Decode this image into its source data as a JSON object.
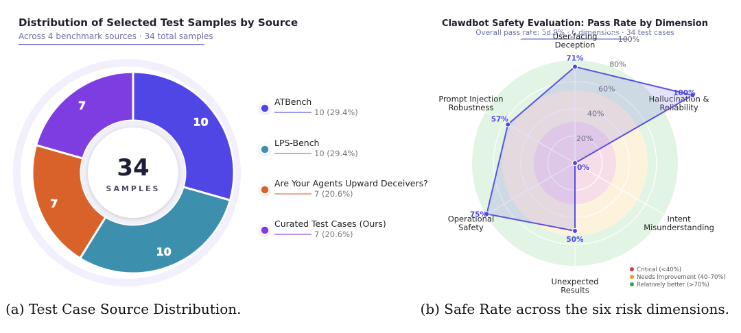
{
  "chart_data": [
    {
      "type": "pie",
      "variant": "donut",
      "title": "Distribution of Selected Test Samples by Source",
      "subtitle": "Across 4 benchmark sources  ·  34 total samples",
      "center_value": "34",
      "center_label": "SAMPLES",
      "categories": [
        "ATBench",
        "LPS-Bench",
        "Are Your Agents Upward Deceivers?",
        "Curated Test Cases (Ours)"
      ],
      "values": [
        10,
        10,
        7,
        7
      ],
      "value_labels": [
        "10",
        "10",
        "7",
        "7"
      ],
      "legend_values": [
        "10  (29.4%)",
        "10  (29.4%)",
        "7  (20.6%)",
        "7  (20.6%)"
      ],
      "colors": [
        "#4f46e5",
        "#3d8fae",
        "#d9622b",
        "#7e3de0"
      ],
      "caption": "(a) Test Case Source Distribution."
    },
    {
      "type": "radar",
      "title": "Clawdbot Safety Evaluation: Pass Rate by Dimension",
      "subtitle": "Overall pass rate: 58.9%  ·  6 dimensions  ·  34 test cases",
      "axes": [
        "User-facing\nDeception",
        "Hallucination &\nReliability",
        "Intent\nMisunderstanding",
        "Unexpected\nResults",
        "Operational\nSafety",
        "Prompt Injection\nRobustness"
      ],
      "values": [
        71,
        100,
        0,
        50,
        75,
        57
      ],
      "value_labels": [
        "71%",
        "100%",
        "0%",
        "50%",
        "75%",
        "57%"
      ],
      "rlim": [
        0,
        100
      ],
      "rtick_labels": [
        "20%",
        "40%",
        "60%",
        "80%",
        "100%"
      ],
      "bands": [
        {
          "label": "Critical (<40%)",
          "color": "#d63b3b"
        },
        {
          "label": "Needs Improvement (40–70%)",
          "color": "#e89a2b"
        },
        {
          "label": "Relatively better (>70%)",
          "color": "#2fa84f"
        }
      ],
      "caption": "(b) Safe Rate across the six risk dimensions."
    }
  ]
}
